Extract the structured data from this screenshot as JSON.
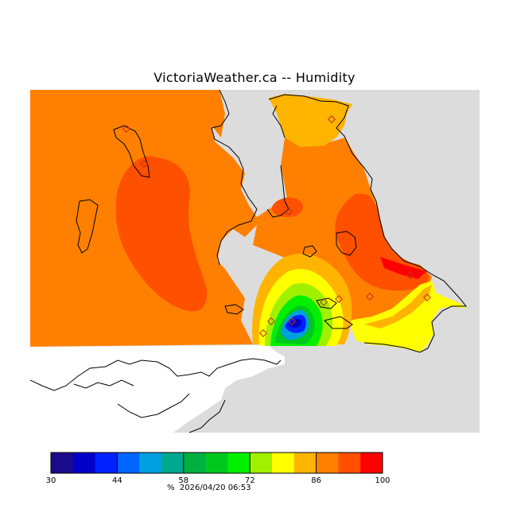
{
  "title": "VictoriaWeather.ca -- Humidity",
  "legend": {
    "unit": "%",
    "timestamp": "2026/04/20 06:53",
    "ticks": [
      "30",
      "44",
      "58",
      "72",
      "86",
      "100"
    ],
    "range": [
      30,
      100
    ],
    "colors": [
      "#1a0a8c",
      "#0000c8",
      "#0022ff",
      "#0066ff",
      "#00a0e0",
      "#00a890",
      "#00b040",
      "#00c81e",
      "#00f000",
      "#a0f000",
      "#ffff00",
      "#ffb400",
      "#ff8000",
      "#ff5000",
      "#ff0000"
    ]
  },
  "map": {
    "colors": {
      "background_land": "#dcdcdc",
      "no_data": "#ffffff",
      "humidity_86_90": "#ff8000",
      "humidity_80_86": "#ffb400",
      "humidity_90_95": "#ff5000",
      "humidity_95_100": "#ff0000",
      "coastline": "#000000",
      "station_marker": "#c03020"
    },
    "stations_count": 12
  }
}
